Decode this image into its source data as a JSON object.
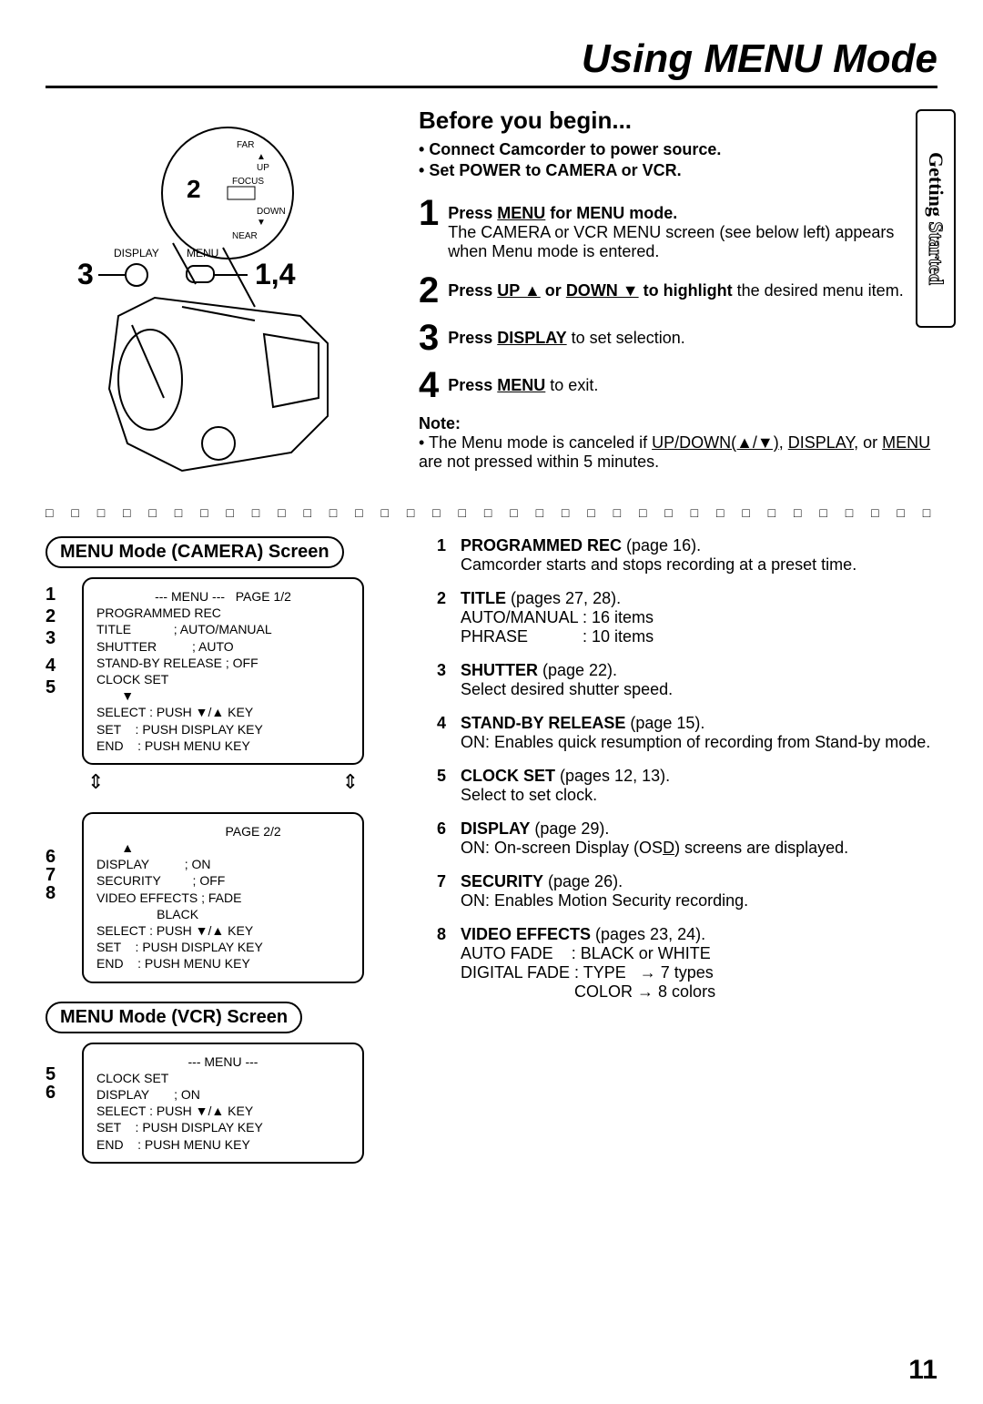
{
  "title": "Using MENU Mode",
  "tab": "Getting Started",
  "before_begin": {
    "heading": "Before you begin...",
    "bullets": [
      "Connect Camcorder to power source.",
      "Set POWER to CAMERA or VCR."
    ]
  },
  "diagram": {
    "zoom_labels": {
      "far": "FAR",
      "up": "UP",
      "focus": "FOCUS",
      "down": "DOWN",
      "near": "NEAR"
    },
    "display_label": "DISPLAY",
    "menu_label": "MENU",
    "callout_2": "2",
    "callout_3": "3",
    "callout_14": "1,4"
  },
  "steps": [
    {
      "num": "1",
      "text_html": "<span class='bold'>Press <span class='ul'>MENU</span> for MENU mode.</span><br>The CAMERA or VCR MENU screen (see below left) appears when Menu mode is entered."
    },
    {
      "num": "2",
      "text_html": "<span class='bold'>Press <span class='ul'>UP ▲</span> or <span class='ul'>DOWN ▼</span> to highlight</span> the desired menu item."
    },
    {
      "num": "3",
      "text_html": "<span class='bold'>Press <span class='ul'>DISPLAY</span></span> to set selection."
    },
    {
      "num": "4",
      "text_html": "<span class='bold'>Press <span class='ul'>MENU</span></span> to exit."
    }
  ],
  "note": {
    "label": "Note:",
    "text_html": "• The Menu mode is canceled if <span class='underline'>UP/DOWN(▲/▼)</span>, <span class='underline'>DISPLAY</span>, or <span class='underline'>MENU</span> are not pressed within 5 minutes."
  },
  "camera_screen": {
    "header": "MENU Mode (CAMERA) Screen",
    "page1": {
      "title": "--- MENU ---   PAGE 1/2",
      "lines": [
        "PROGRAMMED REC",
        "TITLE            ; AUTO/MANUAL",
        "SHUTTER          ; AUTO",
        "STAND-BY RELEASE ; OFF",
        "CLOCK SET",
        "       ▼",
        "SELECT : PUSH ▼/▲ KEY",
        "SET    : PUSH DISPLAY KEY",
        "END    : PUSH MENU KEY"
      ],
      "pointers": [
        "1",
        "2",
        "3",
        "4",
        "5"
      ]
    },
    "page2": {
      "title": "                 PAGE 2/2",
      "lines": [
        "       ▲",
        "DISPLAY          ; ON",
        "SECURITY         ; OFF",
        "VIDEO EFFECTS ; FADE",
        "                 BLACK",
        "",
        "SELECT : PUSH ▼/▲ KEY",
        "SET    : PUSH DISPLAY KEY",
        "END    : PUSH MENU KEY"
      ],
      "pointers": [
        "6",
        "7",
        "8"
      ]
    }
  },
  "vcr_screen": {
    "header": "MENU Mode (VCR) Screen",
    "title": "--- MENU ---",
    "lines": [
      "CLOCK SET",
      "DISPLAY       ; ON",
      "",
      "",
      "SELECT : PUSH ▼/▲ KEY",
      "SET    : PUSH DISPLAY KEY",
      "END    : PUSH MENU KEY"
    ],
    "pointers": [
      "5",
      "6"
    ]
  },
  "items": [
    {
      "num": "1",
      "html": "<span class='bold'>PROGRAMMED REC</span> (page 16).<br>Camcorder starts and stops recording at a preset time."
    },
    {
      "num": "2",
      "html": "<span class='bold'>TITLE</span> (pages 27, 28).<br>AUTO/MANUAL : 16 items<br>PHRASE&nbsp;&nbsp;&nbsp;&nbsp;&nbsp;&nbsp;&nbsp;&nbsp;&nbsp;&nbsp;&nbsp;&nbsp;: 10 items"
    },
    {
      "num": "3",
      "html": "<span class='bold'>SHUTTER</span> (page 22).<br>Select desired shutter speed."
    },
    {
      "num": "4",
      "html": "<span class='bold'>STAND-BY RELEASE</span> (page 15).<br>ON: Enables quick resumption of recording from Stand-by mode."
    },
    {
      "num": "5",
      "html": "<span class='bold'>CLOCK SET</span> (pages 12, 13).<br>Select to set clock."
    },
    {
      "num": "6",
      "html": "<span class='bold'>DISPLAY</span> (page 29).<br>ON: On-screen Display (OS<span class='underline'>D</span>) screens are displayed."
    },
    {
      "num": "7",
      "html": "<span class='bold'>SECURITY</span> (page 26).<br>ON: Enables Motion Security recording."
    },
    {
      "num": "8",
      "html": "<span class='bold'>VIDEO EFFECTS</span> (pages 23, 24).<br>AUTO FADE&nbsp;&nbsp;&nbsp;&nbsp;: BLACK or WHITE<br>DIGITAL FADE : TYPE&nbsp;&nbsp;&nbsp;→ 7 types<br>&nbsp;&nbsp;&nbsp;&nbsp;&nbsp;&nbsp;&nbsp;&nbsp;&nbsp;&nbsp;&nbsp;&nbsp;&nbsp;&nbsp;&nbsp;&nbsp;&nbsp;&nbsp;&nbsp;&nbsp;&nbsp;&nbsp;&nbsp;&nbsp;&nbsp;COLOR → 8 colors"
    }
  ],
  "page_number": "11",
  "dots": "□ □ □ □ □ □ □ □ □ □ □ □ □ □ □ □ □ □ □ □ □ □ □ □ □ □ □ □ □ □ □ □ □ □ □ □ □ □ □ □ □ □ □ □ □ □"
}
